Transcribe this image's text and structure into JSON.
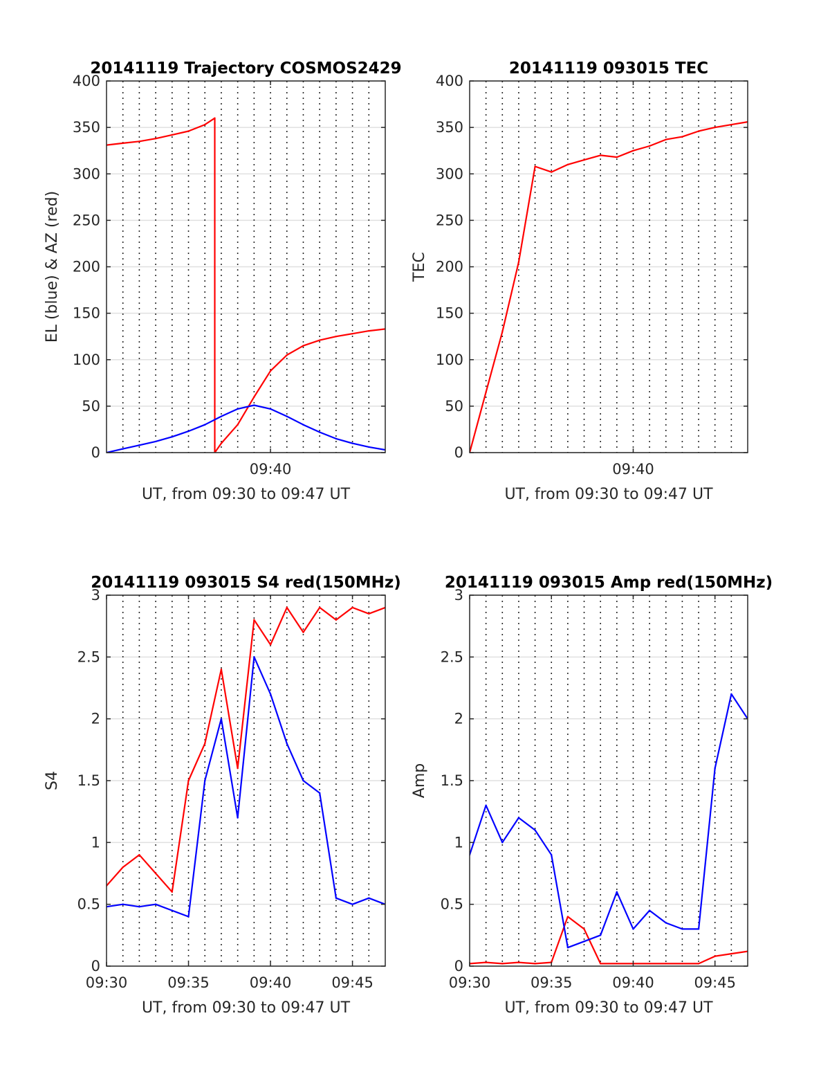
{
  "chart_data": [
    {
      "type": "line",
      "title": "20141119 Trajectory COSMOS2429",
      "xlabel": "UT, from 09:30 to 09:47 UT",
      "ylabel": "EL (blue) & AZ (red)",
      "xlim": [
        "09:30",
        "09:47"
      ],
      "ylim": [
        0,
        400
      ],
      "x_tick_labels": [
        "09:40"
      ],
      "y_tick_labels": [
        "0",
        "50",
        "100",
        "150",
        "200",
        "250",
        "300",
        "350",
        "400"
      ],
      "grid": true,
      "series": [
        {
          "color": "#ff0000",
          "x": [
            "09:30",
            "09:31",
            "09:32",
            "09:33",
            "09:34",
            "09:35",
            "09:36",
            "09:36.6",
            "09:36.6",
            "09:37",
            "09:38",
            "09:39",
            "09:40",
            "09:41",
            "09:42",
            "09:43",
            "09:44",
            "09:45",
            "09:46",
            "09:47"
          ],
          "values": [
            331,
            333,
            335,
            338,
            342,
            346,
            353,
            360,
            0,
            10,
            30,
            60,
            88,
            105,
            115,
            121,
            125,
            128,
            131,
            133
          ]
        },
        {
          "color": "#0000ff",
          "x": [
            "09:30",
            "09:31",
            "09:32",
            "09:33",
            "09:34",
            "09:35",
            "09:36",
            "09:37",
            "09:38",
            "09:39",
            "09:40",
            "09:41",
            "09:42",
            "09:43",
            "09:44",
            "09:45",
            "09:46",
            "09:47"
          ],
          "values": [
            0,
            4,
            8,
            12,
            17,
            23,
            30,
            39,
            47,
            51,
            47,
            39,
            30,
            22,
            15,
            10,
            6,
            3
          ]
        }
      ]
    },
    {
      "type": "line",
      "title": "20141119 093015 TEC",
      "xlabel": "UT, from 09:30 to 09:47 UT",
      "ylabel": "TEC",
      "xlim": [
        "09:30",
        "09:47"
      ],
      "ylim": [
        0,
        400
      ],
      "x_tick_labels": [
        "09:40"
      ],
      "y_tick_labels": [
        "0",
        "50",
        "100",
        "150",
        "200",
        "250",
        "300",
        "350",
        "400"
      ],
      "grid": true,
      "series": [
        {
          "color": "#ff0000",
          "x": [
            "09:30",
            "09:31",
            "09:32",
            "09:33",
            "09:34",
            "09:35",
            "09:36",
            "09:37",
            "09:38",
            "09:39",
            "09:40",
            "09:41",
            "09:42",
            "09:43",
            "09:44",
            "09:45",
            "09:46",
            "09:47"
          ],
          "values": [
            0,
            65,
            130,
            205,
            308,
            302,
            310,
            315,
            320,
            318,
            325,
            330,
            337,
            340,
            346,
            350,
            353,
            356
          ]
        }
      ]
    },
    {
      "type": "line",
      "title": "20141119 093015 S4 red(150MHz)",
      "xlabel": "UT, from 09:30 to 09:47 UT",
      "ylabel": "S4",
      "xlim": [
        "09:30",
        "09:47"
      ],
      "ylim": [
        0,
        3
      ],
      "x_tick_labels": [
        "09:30",
        "09:35",
        "09:40",
        "09:45"
      ],
      "y_tick_labels": [
        "0",
        "0.5",
        "1",
        "1.5",
        "2",
        "2.5",
        "3"
      ],
      "grid": true,
      "series": [
        {
          "color": "#ff0000",
          "x": [
            "09:30",
            "09:31",
            "09:32",
            "09:33",
            "09:34",
            "09:35",
            "09:36",
            "09:37",
            "09:38",
            "09:39",
            "09:40",
            "09:41",
            "09:42",
            "09:43",
            "09:44",
            "09:45",
            "09:46",
            "09:47"
          ],
          "values": [
            0.65,
            0.8,
            0.9,
            0.75,
            0.6,
            1.5,
            1.8,
            2.4,
            1.6,
            2.8,
            2.6,
            2.9,
            2.7,
            2.9,
            2.8,
            2.9,
            2.85,
            2.9
          ]
        },
        {
          "color": "#0000ff",
          "x": [
            "09:30",
            "09:31",
            "09:32",
            "09:33",
            "09:34",
            "09:35",
            "09:36",
            "09:37",
            "09:38",
            "09:39",
            "09:40",
            "09:41",
            "09:42",
            "09:43",
            "09:44",
            "09:45",
            "09:46",
            "09:47"
          ],
          "values": [
            0.48,
            0.5,
            0.48,
            0.5,
            0.45,
            0.4,
            1.5,
            2.0,
            1.2,
            2.5,
            2.2,
            1.8,
            1.5,
            1.4,
            0.55,
            0.5,
            0.55,
            0.5
          ]
        }
      ]
    },
    {
      "type": "line",
      "title": "20141119 093015 Amp red(150MHz)",
      "xlabel": "UT, from 09:30 to 09:47 UT",
      "ylabel": "Amp",
      "xlim": [
        "09:30",
        "09:47"
      ],
      "ylim": [
        0,
        3
      ],
      "x_tick_labels": [
        "09:30",
        "09:35",
        "09:40",
        "09:45"
      ],
      "y_tick_labels": [
        "0",
        "0.5",
        "1",
        "1.5",
        "2",
        "2.5",
        "3"
      ],
      "grid": true,
      "series": [
        {
          "color": "#ff0000",
          "x": [
            "09:30",
            "09:31",
            "09:32",
            "09:33",
            "09:34",
            "09:35",
            "09:36",
            "09:37",
            "09:38",
            "09:39",
            "09:40",
            "09:41",
            "09:42",
            "09:43",
            "09:44",
            "09:45",
            "09:46",
            "09:47"
          ],
          "values": [
            0.02,
            0.03,
            0.02,
            0.03,
            0.02,
            0.03,
            0.4,
            0.3,
            0.02,
            0.02,
            0.02,
            0.02,
            0.02,
            0.02,
            0.02,
            0.08,
            0.1,
            0.12
          ]
        },
        {
          "color": "#0000ff",
          "x": [
            "09:30",
            "09:31",
            "09:32",
            "09:33",
            "09:34",
            "09:35",
            "09:36",
            "09:37",
            "09:38",
            "09:39",
            "09:40",
            "09:41",
            "09:42",
            "09:43",
            "09:44",
            "09:45",
            "09:46",
            "09:47"
          ],
          "values": [
            0.9,
            1.3,
            1.0,
            1.2,
            1.1,
            0.9,
            0.15,
            0.2,
            0.25,
            0.6,
            0.3,
            0.45,
            0.35,
            0.3,
            0.3,
            1.6,
            2.2,
            2.0
          ]
        }
      ]
    }
  ]
}
